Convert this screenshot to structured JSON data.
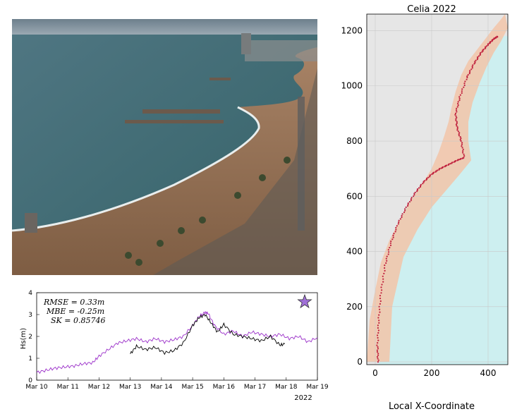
{
  "photo": {
    "description_label": "Coastal camera view"
  },
  "timeseries": {
    "chart_data": {
      "type": "line",
      "ylabel": "Hs(m)",
      "ylim": [
        0,
        4
      ],
      "yticks": [
        "0",
        "1",
        "2",
        "3",
        "4"
      ],
      "xlim": [
        10,
        19
      ],
      "xticks": [
        "Mar 10",
        "Mar 11",
        "Mar 12",
        "Mar 13",
        "Mar 14",
        "Mar 15",
        "Mar 16",
        "Mar 17",
        "Mar 18",
        "Mar 19"
      ],
      "year_label": "2022",
      "stats": [
        "RMSE = 0.33m",
        "MBE = -0.25m",
        "SK = 0.85746"
      ],
      "marker": "star",
      "colors": {
        "model": "#9b30c9",
        "observed": "#000000",
        "star": "#a070d8"
      },
      "series": [
        {
          "name": "model",
          "x": [
            10.0,
            10.3,
            10.6,
            10.9,
            11.2,
            11.5,
            11.8,
            12.0,
            12.3,
            12.6,
            12.9,
            13.2,
            13.5,
            13.8,
            14.1,
            14.4,
            14.7,
            15.0,
            15.2,
            15.4,
            15.5,
            15.7,
            16.0,
            16.3,
            16.6,
            16.9,
            17.2,
            17.5,
            17.8,
            18.1,
            18.4,
            18.7,
            19.0
          ],
          "y": [
            0.35,
            0.45,
            0.55,
            0.6,
            0.65,
            0.75,
            0.8,
            1.1,
            1.4,
            1.7,
            1.8,
            1.9,
            1.75,
            1.9,
            1.75,
            1.85,
            2.0,
            2.5,
            2.9,
            3.1,
            3.05,
            2.5,
            2.1,
            2.25,
            2.0,
            2.2,
            2.1,
            2.0,
            2.1,
            1.9,
            2.0,
            1.75,
            1.95
          ]
        },
        {
          "name": "observed",
          "x": [
            13.0,
            13.2,
            13.5,
            13.8,
            14.1,
            14.4,
            14.7,
            15.0,
            15.2,
            15.4,
            15.6,
            15.8,
            16.0,
            16.3,
            16.6,
            16.9,
            17.2,
            17.5,
            17.8,
            17.95
          ],
          "y": [
            1.2,
            1.55,
            1.4,
            1.5,
            1.25,
            1.35,
            1.7,
            2.5,
            2.85,
            3.0,
            2.6,
            2.2,
            2.55,
            2.1,
            2.0,
            1.9,
            1.8,
            2.0,
            1.6,
            1.65
          ]
        }
      ]
    }
  },
  "shoreline": {
    "chart_data": {
      "type": "scatter",
      "title": "Celia 2022",
      "xlabel": "Local X-Coordinate",
      "ylabel": "",
      "xlim": [
        -30,
        470
      ],
      "ylim": [
        -10,
        1260
      ],
      "xticks": [
        "0",
        "200",
        "400"
      ],
      "yticks": [
        "0",
        "200",
        "400",
        "600",
        "800",
        "1000",
        "1200"
      ],
      "grid": true,
      "colors": {
        "land": "#e6e6e6",
        "sea": "#cdeff0",
        "band": "#f2c4a8",
        "points": "#c0223e"
      },
      "shoreline_points": {
        "x": [
          10,
          8,
          12,
          20,
          35,
          55,
          80,
          110,
          140,
          170,
          200,
          230,
          260,
          290,
          315,
          305,
          290,
          285,
          300,
          325,
          350,
          375,
          400,
          420,
          435
        ],
        "y": [
          0,
          60,
          150,
          250,
          350,
          430,
          500,
          560,
          610,
          650,
          680,
          700,
          715,
          730,
          740,
          800,
          850,
          900,
          960,
          1030,
          1080,
          1120,
          1150,
          1170,
          1180
        ]
      },
      "band_upper": {
        "x": [
          -30,
          -20,
          0,
          20,
          50,
          90,
          130,
          170,
          200,
          225,
          245,
          260,
          270,
          285,
          305,
          330,
          360,
          390,
          420,
          445,
          460
        ],
        "y": [
          0,
          150,
          260,
          360,
          440,
          520,
          590,
          650,
          700,
          760,
          820,
          870,
          920,
          980,
          1040,
          1090,
          1130,
          1170,
          1210,
          1240,
          1260
        ]
      },
      "band_lower": {
        "x": [
          50,
          60,
          100,
          150,
          200,
          250,
          300,
          340,
          330,
          330,
          345,
          370,
          395,
          420,
          445,
          460,
          470
        ],
        "y": [
          0,
          200,
          380,
          480,
          560,
          620,
          680,
          730,
          800,
          870,
          940,
          1010,
          1070,
          1120,
          1160,
          1190,
          1210
        ]
      }
    }
  }
}
